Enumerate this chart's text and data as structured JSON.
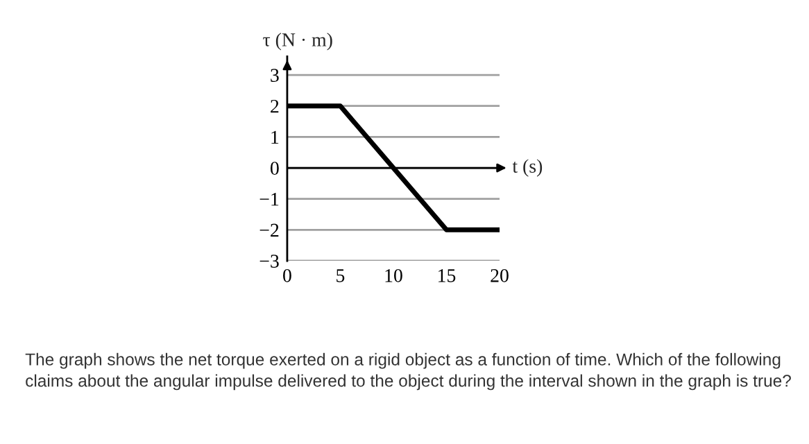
{
  "chart_data": {
    "type": "line",
    "xlabel": "t (s)",
    "ylabel": "τ (N · m)",
    "x": [
      0,
      5,
      15,
      20
    ],
    "series": [
      {
        "color": "#000000",
        "values": [
          2,
          2,
          -2,
          -2
        ]
      }
    ],
    "xlim": [
      0,
      20
    ],
    "xticks": [
      0,
      5,
      10,
      15,
      20
    ],
    "ylim": [
      -3,
      3.6
    ],
    "yticks": [
      -3,
      -2,
      -1,
      0,
      1,
      2,
      3
    ],
    "grid": "y",
    "marker": "none",
    "line_style": "solid",
    "annotations": [
      "The graph shows the net torque exerted on a rigid object as a function of time. Which of the following claims about the angular impulse delivered to the object during the interval shown in the graph is true?"
    ]
  }
}
